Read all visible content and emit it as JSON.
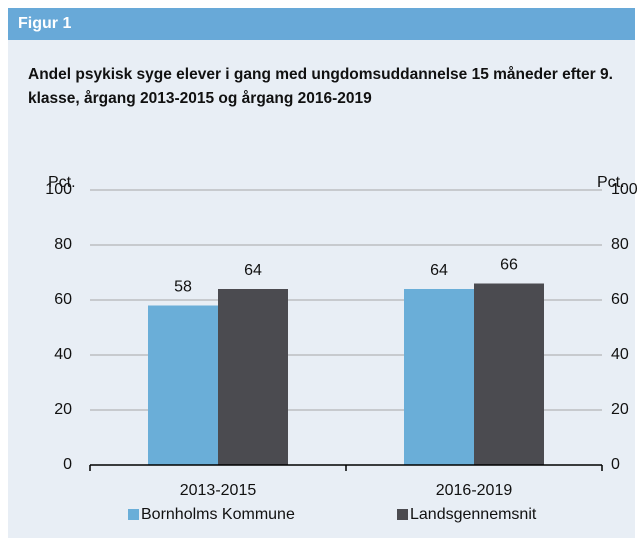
{
  "header": "Figur 1",
  "chart_data": {
    "type": "bar",
    "title": "Andel psykisk syge elever i gang med ungdomsuddannelse 15 måneder efter 9. klasse, årgang 2013-2015 og årgang 2016-2019",
    "ylabel": "Pct.",
    "y2label": "Pct.",
    "categories": [
      "2013-2015",
      "2016-2019"
    ],
    "series": [
      {
        "name": "Bornholms Kommune",
        "color": "#6aaed8",
        "values": [
          58,
          64
        ]
      },
      {
        "name": "Landsgennemsnit",
        "color": "#4b4b50",
        "values": [
          64,
          66
        ]
      }
    ],
    "ylim": [
      0,
      100
    ],
    "yticks": [
      0,
      20,
      40,
      60,
      80,
      100
    ],
    "y2lim": [
      0,
      100
    ],
    "y2ticks": [
      0,
      20,
      40,
      60,
      80,
      100
    ],
    "grid": true,
    "legend": "bottom"
  }
}
